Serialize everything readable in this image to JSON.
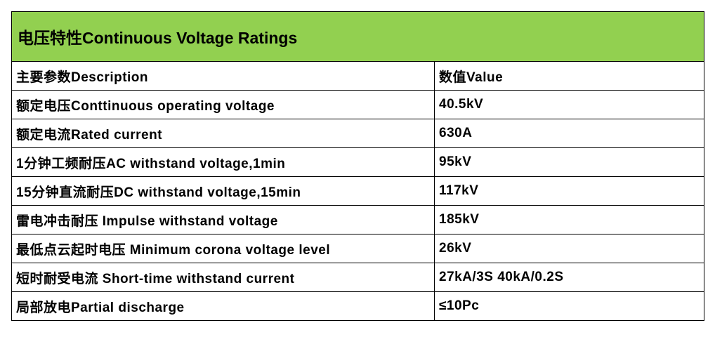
{
  "table": {
    "title": "电压特性Continuous Voltage Ratings",
    "header": [
      "主要参数Description",
      "数值Value"
    ],
    "rows": [
      [
        "额定电压Conttinuous operating voltage",
        "40.5kV"
      ],
      [
        "额定电流Rated current",
        "630A"
      ],
      [
        "1分钟工频耐压AC withstand voltage,1min",
        "95kV"
      ],
      [
        "15分钟直流耐压DC withstand voltage,15min",
        "117kV"
      ],
      [
        "雷电冲击耐压 Impulse withstand voltage",
        "185kV"
      ],
      [
        "最低点云起时电压 Minimum corona voltage level",
        "26kV"
      ],
      [
        "短时耐受电流 Short-time withstand current",
        "27kA/3S 40kA/0.2S"
      ],
      [
        "局部放电Partial discharge",
        "≤10Pc"
      ]
    ]
  }
}
